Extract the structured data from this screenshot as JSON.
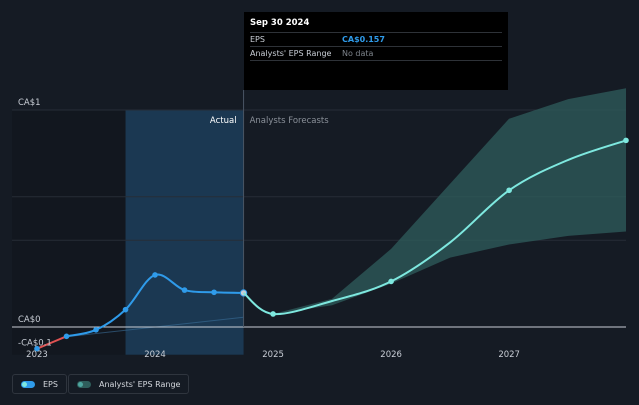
{
  "tooltip": {
    "date": "Sep 30 2024",
    "rows": [
      {
        "label": "EPS",
        "value": "CA$0.157"
      },
      {
        "label": "Analysts' EPS Range",
        "value": "No data"
      }
    ]
  },
  "legend": {
    "items": [
      {
        "label": "EPS",
        "color": "#2f9bea"
      },
      {
        "label": "Analysts' EPS Range",
        "color": "#2f5e5c"
      }
    ]
  },
  "colors": {
    "actual": "#2f9bea",
    "forecast": "#7ee8df",
    "negative": "#e05252",
    "range_fill": "#2f5e5c",
    "background": "#151b24",
    "actual_highlight": "#1b3852"
  },
  "chart_data": {
    "type": "line",
    "title": "",
    "xlabel": "",
    "ylabel": "",
    "x_ticks": [
      "2023",
      "2024",
      "2025",
      "2026",
      "2027"
    ],
    "y_ticks": [
      {
        "value": 1,
        "label": "CA$1"
      },
      {
        "value": 0,
        "label": "CA$0"
      },
      {
        "value": -0.1,
        "label": "-CA$0.1"
      }
    ],
    "xlim": [
      2023.0,
      2027.99
    ],
    "ylim": [
      -0.1,
      1.0
    ],
    "grid": true,
    "region_labels": {
      "actual": "Actual",
      "forecast": "Analysts Forecasts"
    },
    "actual_highlight_range": [
      2023.75,
      2024.75
    ],
    "divider_x": 2024.75,
    "series": [
      {
        "name": "EPS",
        "segment": "actual",
        "points": [
          {
            "x": 2023.0,
            "y": -0.1
          },
          {
            "x": 2023.25,
            "y": -0.043
          },
          {
            "x": 2023.5,
            "y": -0.013
          },
          {
            "x": 2023.75,
            "y": 0.08
          },
          {
            "x": 2024.0,
            "y": 0.24
          },
          {
            "x": 2024.25,
            "y": 0.17
          },
          {
            "x": 2024.5,
            "y": 0.16
          },
          {
            "x": 2024.75,
            "y": 0.157
          }
        ]
      },
      {
        "name": "EPS",
        "segment": "forecast",
        "points": [
          {
            "x": 2024.75,
            "y": 0.157
          },
          {
            "x": 2025.0,
            "y": 0.06
          },
          {
            "x": 2025.5,
            "y": 0.12
          },
          {
            "x": 2026.0,
            "y": 0.21
          },
          {
            "x": 2026.5,
            "y": 0.39
          },
          {
            "x": 2027.0,
            "y": 0.63
          },
          {
            "x": 2027.5,
            "y": 0.77
          },
          {
            "x": 2027.99,
            "y": 0.86
          }
        ],
        "markers": [
          2025.0,
          2026.0,
          2027.0,
          2027.99
        ]
      }
    ],
    "range": {
      "name": "Analysts' EPS Range",
      "points": [
        {
          "x": 2025.0,
          "low": 0.06,
          "high": 0.06
        },
        {
          "x": 2025.5,
          "low": 0.1,
          "high": 0.13
        },
        {
          "x": 2026.0,
          "low": 0.2,
          "high": 0.36
        },
        {
          "x": 2026.5,
          "low": 0.32,
          "high": 0.66
        },
        {
          "x": 2027.0,
          "low": 0.38,
          "high": 0.96
        },
        {
          "x": 2027.5,
          "low": 0.42,
          "high": 1.05
        },
        {
          "x": 2027.99,
          "low": 0.44,
          "high": 1.1
        }
      ]
    }
  }
}
